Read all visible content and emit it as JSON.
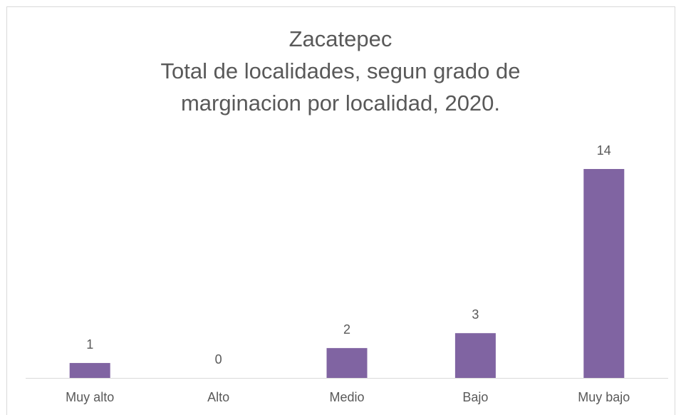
{
  "chart_data": {
    "type": "bar",
    "title": [
      "Zacatepec",
      "Total de localidades, segun grado de",
      "marginacion por localidad, 2020."
    ],
    "categories": [
      "Muy alto",
      "Alto",
      "Medio",
      "Bajo",
      "Muy bajo"
    ],
    "values": [
      1,
      0,
      2,
      3,
      14
    ],
    "color": "#8064a2",
    "ylim": [
      0,
      14
    ]
  }
}
